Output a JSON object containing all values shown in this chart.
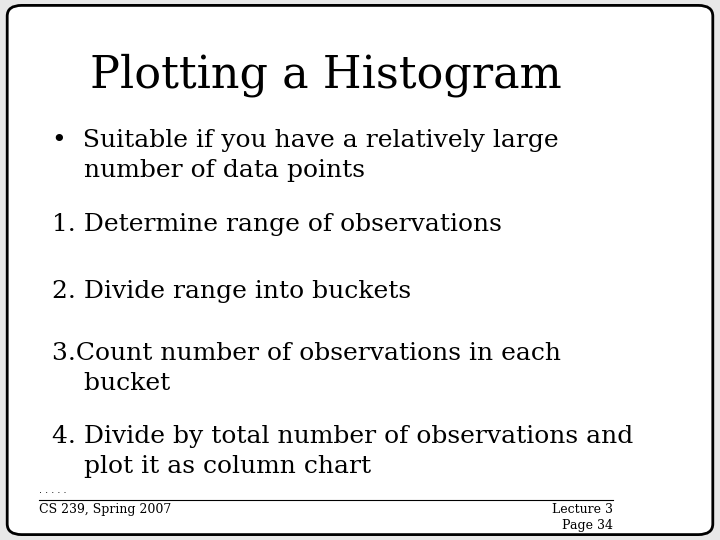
{
  "title": "Plotting a Histogram",
  "title_fontsize": 32,
  "title_font": "serif",
  "background_color": "#ffffff",
  "slide_bg": "#e8e8e8",
  "border_color": "#000000",
  "text_color": "#000000",
  "bullet_items": [
    "•  Suitable if you have a relatively large\n    number of data points"
  ],
  "numbered_items": [
    "1. Determine range of observations",
    "2. Divide range into buckets",
    "3.Count number of observations in each\n    bucket",
    "4. Divide by total number of observations and\n    plot it as column chart"
  ],
  "footer_left": "CS 239, Spring 2007",
  "footer_right": "Lecture 3\nPage 34",
  "body_fontsize": 18,
  "footer_fontsize": 9
}
